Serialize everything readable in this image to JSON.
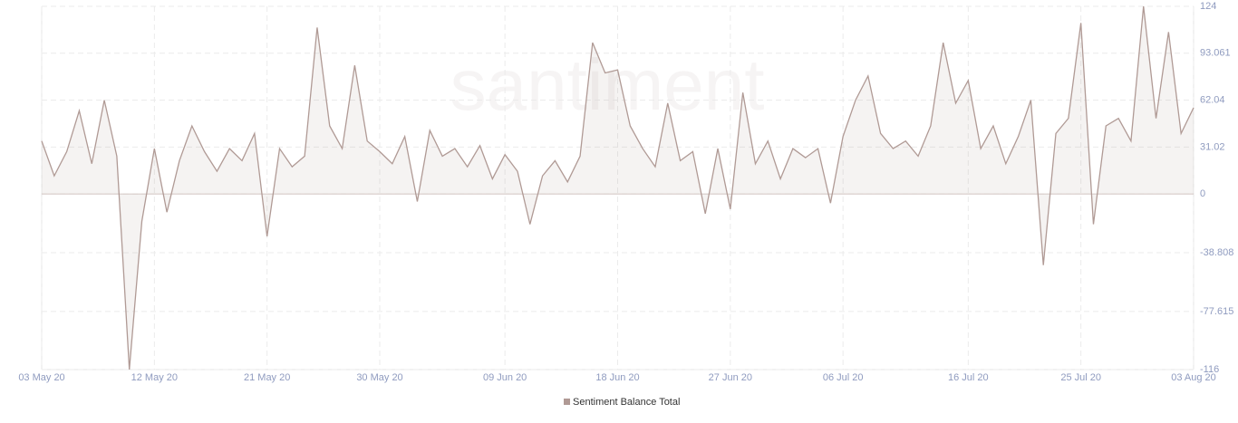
{
  "chart_data": {
    "type": "line",
    "watermark": "santiment",
    "x": [
      "2020-05-03",
      "2020-05-04",
      "2020-05-05",
      "2020-05-06",
      "2020-05-07",
      "2020-05-08",
      "2020-05-09",
      "2020-05-10",
      "2020-05-11",
      "2020-05-12",
      "2020-05-13",
      "2020-05-14",
      "2020-05-15",
      "2020-05-16",
      "2020-05-17",
      "2020-05-18",
      "2020-05-19",
      "2020-05-20",
      "2020-05-21",
      "2020-05-22",
      "2020-05-23",
      "2020-05-24",
      "2020-05-25",
      "2020-05-26",
      "2020-05-27",
      "2020-05-28",
      "2020-05-29",
      "2020-05-30",
      "2020-05-31",
      "2020-06-01",
      "2020-06-02",
      "2020-06-03",
      "2020-06-04",
      "2020-06-05",
      "2020-06-06",
      "2020-06-07",
      "2020-06-08",
      "2020-06-09",
      "2020-06-10",
      "2020-06-11",
      "2020-06-12",
      "2020-06-13",
      "2020-06-14",
      "2020-06-15",
      "2020-06-16",
      "2020-06-17",
      "2020-06-18",
      "2020-06-19",
      "2020-06-20",
      "2020-06-21",
      "2020-06-22",
      "2020-06-23",
      "2020-06-24",
      "2020-06-25",
      "2020-06-26",
      "2020-06-27",
      "2020-06-28",
      "2020-06-29",
      "2020-06-30",
      "2020-07-01",
      "2020-07-02",
      "2020-07-03",
      "2020-07-04",
      "2020-07-05",
      "2020-07-06",
      "2020-07-07",
      "2020-07-08",
      "2020-07-09",
      "2020-07-10",
      "2020-07-11",
      "2020-07-12",
      "2020-07-13",
      "2020-07-14",
      "2020-07-15",
      "2020-07-16",
      "2020-07-17",
      "2020-07-18",
      "2020-07-19",
      "2020-07-20",
      "2020-07-21",
      "2020-07-22",
      "2020-07-23",
      "2020-07-24",
      "2020-07-25",
      "2020-07-26",
      "2020-07-27",
      "2020-07-28",
      "2020-07-29",
      "2020-07-30",
      "2020-07-31",
      "2020-08-01",
      "2020-08-02",
      "2020-08-03"
    ],
    "series": [
      {
        "name": "Sentiment Balance Total",
        "color": "#b09a95",
        "values": [
          35,
          12,
          28,
          55,
          20,
          62,
          25,
          -116,
          -18,
          30,
          -12,
          22,
          45,
          28,
          15,
          30,
          22,
          40,
          -28,
          30,
          18,
          25,
          110,
          45,
          30,
          85,
          35,
          28,
          20,
          38,
          -5,
          42,
          25,
          30,
          18,
          32,
          10,
          26,
          15,
          -20,
          12,
          22,
          8,
          25,
          100,
          80,
          82,
          45,
          30,
          18,
          60,
          22,
          28,
          -13,
          30,
          -10,
          67,
          20,
          35,
          10,
          30,
          24,
          30,
          -6,
          38,
          62,
          78,
          40,
          30,
          35,
          25,
          45,
          100,
          60,
          75,
          30,
          45,
          20,
          38,
          62,
          -47,
          40,
          50,
          113,
          -20,
          45,
          50,
          35,
          124,
          50,
          107,
          40,
          57
        ]
      }
    ],
    "xlim": [
      "2020-05-03",
      "2020-08-03"
    ],
    "xticks": [
      {
        "value": "2020-05-03",
        "label": "03 May 20"
      },
      {
        "value": "2020-05-12",
        "label": "12 May 20"
      },
      {
        "value": "2020-05-21",
        "label": "21 May 20"
      },
      {
        "value": "2020-05-30",
        "label": "30 May 20"
      },
      {
        "value": "2020-06-09",
        "label": "09 Jun 20"
      },
      {
        "value": "2020-06-18",
        "label": "18 Jun 20"
      },
      {
        "value": "2020-06-27",
        "label": "27 Jun 20"
      },
      {
        "value": "2020-07-06",
        "label": "06 Jul 20"
      },
      {
        "value": "2020-07-16",
        "label": "16 Jul 20"
      },
      {
        "value": "2020-07-25",
        "label": "25 Jul 20"
      },
      {
        "value": "2020-08-03",
        "label": "03 Aug 20"
      }
    ],
    "ylim": [
      -116,
      124
    ],
    "yticks": [
      124,
      93.061,
      62.04,
      31.02,
      0,
      -38.808,
      -77.615,
      -116
    ],
    "grid": true
  }
}
